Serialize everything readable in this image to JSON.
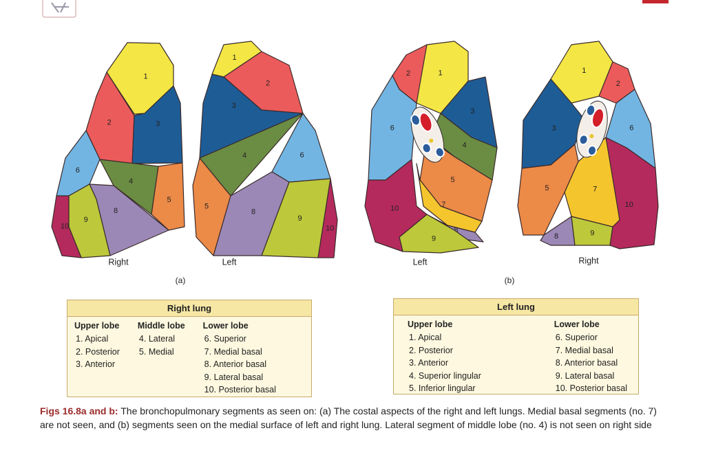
{
  "figure": {
    "panels": [
      {
        "label": "(a)",
        "lungs": [
          {
            "name": "Right",
            "segments": [
              "1",
              "2",
              "3",
              "4",
              "5",
              "6",
              "8",
              "9",
              "10"
            ]
          },
          {
            "name": "Left",
            "segments": [
              "1",
              "2",
              "3",
              "4",
              "5",
              "6",
              "8",
              "9",
              "10"
            ]
          }
        ]
      },
      {
        "label": "(b)",
        "lungs": [
          {
            "name": "Left",
            "segments": [
              "1",
              "2",
              "3",
              "4",
              "5",
              "6",
              "7",
              "8",
              "9",
              "10"
            ]
          },
          {
            "name": "Right",
            "segments": [
              "1",
              "2",
              "3",
              "5",
              "6",
              "7",
              "8",
              "9",
              "10"
            ]
          }
        ]
      }
    ]
  },
  "tables": [
    {
      "title": "Right lung",
      "columns": [
        {
          "heading": "Upper lobe",
          "items": [
            "1. Apical",
            "2. Posterior",
            "3. Anterior"
          ]
        },
        {
          "heading": "Middle lobe",
          "items": [
            "4. Lateral",
            "5. Medial"
          ]
        },
        {
          "heading": "Lower lobe",
          "items": [
            "6. Superior",
            "7. Medial basal",
            "8. Anterior basal",
            "9. Lateral basal",
            "10. Posterior basal"
          ]
        }
      ]
    },
    {
      "title": "Left lung",
      "columns": [
        {
          "heading": "Upper lobe",
          "items": [
            "1. Apical",
            "2. Posterior",
            "3. Anterior",
            "4. Superior lingular",
            "5. Inferior lingular"
          ]
        },
        {
          "heading": "Lower lobe",
          "items": [
            "6. Superior",
            "7. Medial basal",
            "8. Anterior basal",
            "9. Lateral basal",
            "10. Posterior basal"
          ]
        }
      ]
    }
  ],
  "caption": {
    "lead": "Figs 16.8a and b:",
    "text": "The bronchopulmonary segments as seen on: (a) The costal aspects of the right and left lungs. Medial basal segments (no. 7) are not seen, and (b) segments seen on the medial surface of left and right lung. Lateral segment of middle lobe (no. 4) is not seen on right side"
  }
}
